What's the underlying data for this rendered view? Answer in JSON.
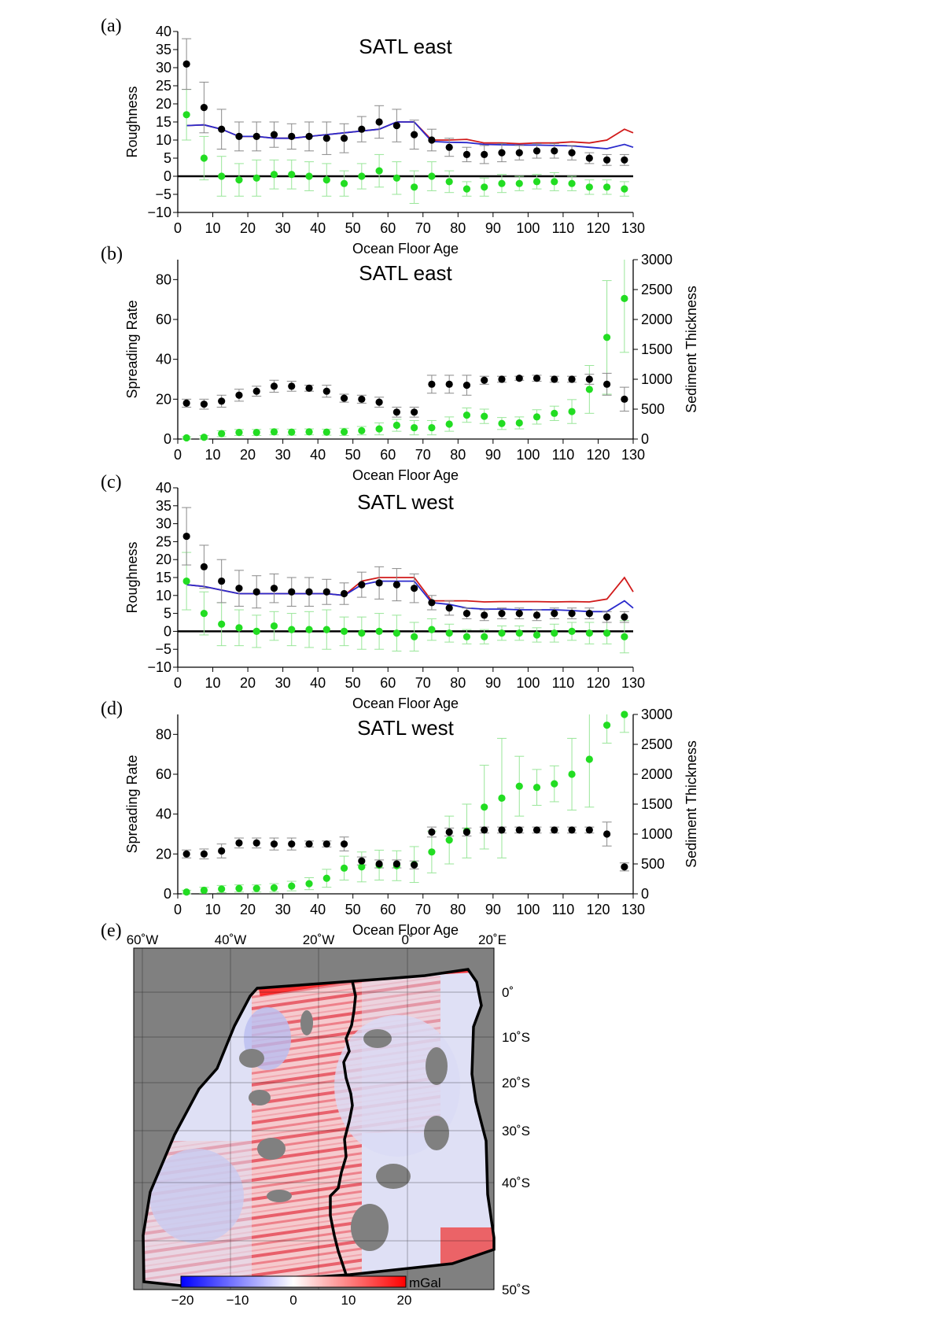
{
  "colors": {
    "black": "#000000",
    "green": "#22dd22",
    "green_err": "#99e699",
    "grey_err": "#8a8a8a",
    "red": "#d11a1a",
    "blue": "#2a2acc",
    "land": "#808080",
    "gravity_neg": "#0000ff",
    "gravity_pos": "#ff0000"
  },
  "chart_data": [
    {
      "id": "a",
      "panel_label": "(a)",
      "type": "scatter",
      "title": "SATL east",
      "xlabel": "Ocean Floor Age",
      "ylabel": "Roughness",
      "xlim": [
        0,
        130
      ],
      "ylim": [
        -10,
        40
      ],
      "xticks": [
        0,
        10,
        20,
        30,
        40,
        50,
        60,
        70,
        80,
        90,
        100,
        110,
        120,
        130
      ],
      "yticks": [
        -10,
        -5,
        0,
        5,
        10,
        15,
        20,
        25,
        30,
        35,
        40
      ],
      "zero_line": true,
      "x": [
        2.5,
        7.5,
        12.5,
        17.5,
        22.5,
        27.5,
        32.5,
        37.5,
        42.5,
        47.5,
        52.5,
        57.5,
        62.5,
        67.5,
        72.5,
        77.5,
        82.5,
        87.5,
        92.5,
        97.5,
        102.5,
        107.5,
        112.5,
        117.5,
        122.5,
        127.5
      ],
      "series": [
        {
          "marker": "black",
          "values": [
            31,
            19,
            13,
            11,
            11,
            11.5,
            11,
            11,
            10.5,
            10.5,
            13,
            15,
            14,
            11.5,
            10,
            8,
            6,
            6,
            6.5,
            6.5,
            7,
            7,
            6.5,
            5,
            4.5,
            4.5
          ],
          "err": [
            7,
            7,
            5.5,
            4,
            4,
            3.5,
            3.5,
            4,
            4.5,
            4,
            3.5,
            4.5,
            4.5,
            4,
            3,
            2.5,
            2,
            2.5,
            2.5,
            2,
            2,
            2,
            2,
            1.5,
            1.5,
            1.5
          ]
        },
        {
          "marker": "green",
          "values": [
            17,
            5,
            0,
            -1,
            -0.5,
            0.5,
            0.5,
            0,
            -1,
            -2,
            0,
            1.5,
            -0.5,
            -3,
            0,
            -1.5,
            -3.5,
            -3,
            -2,
            -2,
            -1.5,
            -1.5,
            -2,
            -3,
            -3,
            -3.5
          ],
          "err": [
            7,
            6,
            5.5,
            4.5,
            5,
            4,
            4,
            4,
            4.5,
            3.5,
            3.5,
            4.5,
            4.5,
            4.5,
            4,
            3,
            2,
            2.5,
            2.5,
            2,
            2,
            2.5,
            2,
            2,
            2,
            2
          ]
        }
      ],
      "lines": [
        {
          "color": "red",
          "x": [
            2.5,
            7.5,
            12.5,
            17.5,
            22.5,
            27.5,
            32.5,
            37.5,
            42.5,
            47.5,
            52.5,
            57.5,
            62.5,
            67.5,
            72.5,
            77.5,
            82.5,
            87.5,
            92.5,
            97.5,
            102.5,
            107.5,
            112.5,
            117.5,
            122.5,
            127.5,
            130
          ],
          "y": [
            14,
            14.2,
            13,
            11,
            11,
            10.5,
            10.5,
            11,
            11.5,
            12,
            12.5,
            13,
            15,
            15,
            10,
            10,
            10.2,
            9.2,
            9.2,
            9,
            9.2,
            9.2,
            9.5,
            9.2,
            10,
            13,
            12
          ]
        },
        {
          "color": "blue",
          "x": [
            2.5,
            7.5,
            12.5,
            17.5,
            22.5,
            27.5,
            32.5,
            37.5,
            42.5,
            47.5,
            52.5,
            57.5,
            62.5,
            67.5,
            72.5,
            77.5,
            82.5,
            87.5,
            92.5,
            97.5,
            102.5,
            107.5,
            112.5,
            117.5,
            122.5,
            127.5,
            130
          ],
          "y": [
            14,
            14.2,
            13,
            11,
            11,
            10.5,
            10.5,
            11,
            11.5,
            12,
            12.5,
            13,
            15,
            15,
            9.6,
            9.4,
            9.3,
            8.8,
            8.7,
            8.6,
            8.6,
            8.5,
            8.4,
            8,
            7.6,
            8.8,
            8
          ]
        }
      ]
    },
    {
      "id": "b",
      "panel_label": "(b)",
      "type": "scatter",
      "title": "SATL east",
      "xlabel": "Ocean Floor Age",
      "ylabel": "Spreading Rate",
      "y2label": "Sediment Thickness",
      "xlim": [
        0,
        130
      ],
      "ylim": [
        0,
        90
      ],
      "y2lim": [
        0,
        3000
      ],
      "xticks": [
        0,
        10,
        20,
        30,
        40,
        50,
        60,
        70,
        80,
        90,
        100,
        110,
        120,
        130
      ],
      "yticks": [
        0,
        20,
        40,
        60,
        80
      ],
      "y2ticks": [
        0,
        500,
        1000,
        1500,
        2000,
        2500,
        3000
      ],
      "x": [
        2.5,
        7.5,
        12.5,
        17.5,
        22.5,
        27.5,
        32.5,
        37.5,
        42.5,
        47.5,
        52.5,
        57.5,
        62.5,
        67.5,
        72.5,
        77.5,
        82.5,
        87.5,
        92.5,
        97.5,
        102.5,
        107.5,
        112.5,
        117.5,
        122.5,
        127.5
      ],
      "series": [
        {
          "marker": "black",
          "axis": "left",
          "values": [
            18,
            17.5,
            19,
            22,
            24,
            26.5,
            26.5,
            25.5,
            24,
            20.5,
            20,
            18.5,
            13.5,
            13.5,
            27.5,
            27.5,
            27,
            29.5,
            30,
            30.5,
            30.5,
            30,
            30,
            30,
            27.5,
            20
          ],
          "err": [
            2,
            2.5,
            3,
            3,
            2.5,
            3,
            2.5,
            1.5,
            3,
            2,
            2,
            2.5,
            2.5,
            2.5,
            4.5,
            4.5,
            5,
            2,
            1.5,
            1,
            1.5,
            1.5,
            1.5,
            2.5,
            5.5,
            6
          ]
        },
        {
          "marker": "green",
          "axis": "right",
          "values": [
            20,
            30,
            90,
            110,
            110,
            120,
            115,
            120,
            115,
            120,
            140,
            170,
            230,
            190,
            190,
            250,
            400,
            380,
            260,
            270,
            370,
            430,
            460,
            830,
            1700,
            2350
          ],
          "err": [
            20,
            30,
            50,
            50,
            50,
            50,
            50,
            50,
            50,
            60,
            70,
            100,
            100,
            120,
            120,
            120,
            120,
            120,
            100,
            100,
            120,
            120,
            200,
            400,
            950,
            900
          ]
        }
      ]
    },
    {
      "id": "c",
      "panel_label": "(c)",
      "type": "scatter",
      "title": "SATL west",
      "xlabel": "Ocean Floor Age",
      "ylabel": "Roughness",
      "xlim": [
        0,
        130
      ],
      "ylim": [
        -10,
        40
      ],
      "xticks": [
        0,
        10,
        20,
        30,
        40,
        50,
        60,
        70,
        80,
        90,
        100,
        110,
        120,
        130
      ],
      "yticks": [
        -10,
        -5,
        0,
        5,
        10,
        15,
        20,
        25,
        30,
        35,
        40
      ],
      "zero_line": true,
      "x": [
        2.5,
        7.5,
        12.5,
        17.5,
        22.5,
        27.5,
        32.5,
        37.5,
        42.5,
        47.5,
        52.5,
        57.5,
        62.5,
        67.5,
        72.5,
        77.5,
        82.5,
        87.5,
        92.5,
        97.5,
        102.5,
        107.5,
        112.5,
        117.5,
        122.5,
        127.5
      ],
      "series": [
        {
          "marker": "black",
          "values": [
            26.5,
            18,
            14,
            12,
            11,
            12,
            11,
            11,
            11,
            10.5,
            13,
            13.5,
            13,
            12,
            8,
            6.5,
            5,
            4.5,
            5,
            5,
            4.5,
            5,
            5,
            5,
            4,
            4
          ],
          "err": [
            8,
            6,
            6,
            5,
            4.5,
            4,
            4,
            4,
            3.5,
            3,
            3.5,
            4.5,
            4.5,
            4,
            2,
            2,
            1.5,
            1.5,
            1.5,
            1.5,
            1.5,
            1.5,
            1.5,
            1.5,
            1.5,
            1.5
          ]
        },
        {
          "marker": "green",
          "values": [
            14,
            5,
            2,
            1,
            0,
            1.5,
            0.5,
            0.5,
            0.5,
            0,
            -0.5,
            0,
            -0.5,
            -1.5,
            0.5,
            -0.5,
            -1.5,
            -1.5,
            -0.5,
            -0.5,
            -1,
            -0.5,
            0,
            -0.5,
            -0.5,
            -1.5
          ],
          "err": [
            8,
            6,
            6,
            5,
            4.5,
            4,
            4.5,
            5,
            5.5,
            4,
            4.5,
            5,
            5,
            4,
            3,
            2.5,
            2,
            2,
            2,
            2,
            2,
            2.5,
            2.5,
            3,
            3,
            4.5
          ]
        }
      ],
      "lines": [
        {
          "color": "red",
          "x": [
            2.5,
            7.5,
            12.5,
            17.5,
            22.5,
            27.5,
            32.5,
            37.5,
            42.5,
            47.5,
            52.5,
            57.5,
            62.5,
            67.5,
            72.5,
            77.5,
            82.5,
            87.5,
            92.5,
            97.5,
            102.5,
            107.5,
            112.5,
            117.5,
            122.5,
            127.5,
            130
          ],
          "y": [
            13,
            12.5,
            11.5,
            10.5,
            10.5,
            10.5,
            10.5,
            10.5,
            10.5,
            10,
            14,
            15,
            15,
            15,
            8.5,
            8.5,
            8.5,
            8.2,
            8.3,
            8.3,
            8.3,
            8.2,
            8.3,
            8.2,
            9,
            15,
            11
          ]
        },
        {
          "color": "blue",
          "x": [
            2.5,
            7.5,
            12.5,
            17.5,
            22.5,
            27.5,
            32.5,
            37.5,
            42.5,
            47.5,
            52.5,
            57.5,
            62.5,
            67.5,
            72.5,
            77.5,
            82.5,
            87.5,
            92.5,
            97.5,
            102.5,
            107.5,
            112.5,
            117.5,
            122.5,
            127.5,
            130
          ],
          "y": [
            13,
            12.5,
            11.5,
            10.5,
            10.5,
            10.5,
            10.5,
            10.5,
            10.5,
            10,
            13,
            14,
            14,
            14,
            8,
            7.5,
            6.5,
            6.2,
            6.2,
            6,
            6,
            6,
            5.8,
            5.5,
            5.5,
            8.5,
            6.5
          ]
        }
      ]
    },
    {
      "id": "d",
      "panel_label": "(d)",
      "type": "scatter",
      "title": "SATL west",
      "xlabel": "Ocean Floor Age",
      "ylabel": "Spreading Rate",
      "y2label": "Sediment Thickness",
      "xlim": [
        0,
        130
      ],
      "ylim": [
        0,
        90
      ],
      "y2lim": [
        0,
        3000
      ],
      "xticks": [
        0,
        10,
        20,
        30,
        40,
        50,
        60,
        70,
        80,
        90,
        100,
        110,
        120,
        130
      ],
      "yticks": [
        0,
        20,
        40,
        60,
        80
      ],
      "y2ticks": [
        0,
        500,
        1000,
        1500,
        2000,
        2500,
        3000
      ],
      "x": [
        2.5,
        7.5,
        12.5,
        17.5,
        22.5,
        27.5,
        32.5,
        37.5,
        42.5,
        47.5,
        52.5,
        57.5,
        62.5,
        67.5,
        72.5,
        77.5,
        82.5,
        87.5,
        92.5,
        97.5,
        102.5,
        107.5,
        112.5,
        117.5,
        122.5,
        127.5
      ],
      "series": [
        {
          "marker": "black",
          "axis": "left",
          "values": [
            20,
            20,
            21.5,
            25.5,
            25.5,
            25,
            25,
            25,
            25,
            25,
            16.5,
            15,
            15,
            14.5,
            31,
            31,
            31,
            32,
            32,
            32,
            32,
            32,
            32,
            32,
            30,
            13.5
          ],
          "err": [
            2,
            2.5,
            3.5,
            2.5,
            2.5,
            3,
            3,
            1.5,
            1.5,
            3.5,
            2,
            2,
            2,
            2,
            2.5,
            2,
            2,
            1.5,
            1.5,
            1.5,
            1.5,
            1.5,
            1.5,
            1.5,
            6,
            2
          ]
        },
        {
          "marker": "green",
          "axis": "right",
          "values": [
            30,
            60,
            80,
            90,
            90,
            100,
            130,
            170,
            260,
            430,
            450,
            480,
            470,
            490,
            700,
            900,
            1050,
            1450,
            1600,
            1800,
            1780,
            1840,
            2000,
            2250,
            2820,
            3000
          ],
          "err": [
            30,
            50,
            60,
            60,
            60,
            70,
            80,
            100,
            150,
            200,
            250,
            250,
            250,
            300,
            350,
            400,
            450,
            700,
            1000,
            500,
            300,
            300,
            600,
            800,
            300,
            300
          ]
        }
      ]
    }
  ],
  "map": {
    "panel_label": "(e)",
    "lon_labels": [
      "60˚W",
      "40˚W",
      "20˚W",
      "0˚",
      "20˚E"
    ],
    "lat_labels": [
      "0˚",
      "10˚S",
      "20˚S",
      "30˚S",
      "40˚S",
      "50˚S"
    ],
    "colorbar_unit": "mGal",
    "colorbar_ticks": [
      "−20",
      "−10",
      "0",
      "10",
      "20"
    ]
  }
}
